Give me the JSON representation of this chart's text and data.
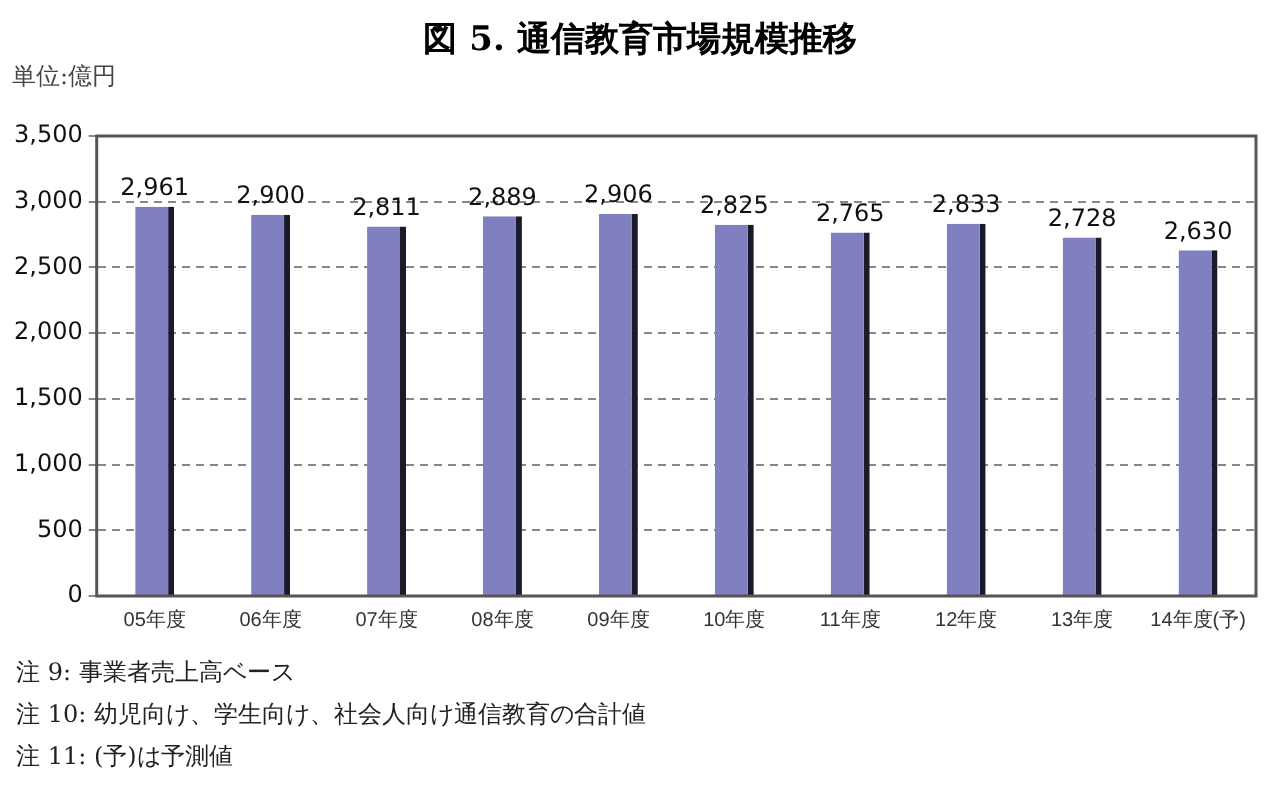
{
  "chart_data": {
    "type": "bar",
    "title": "図 5. 通信教育市場規模推移",
    "ylabel": "単位:億円",
    "categories": [
      "05年度",
      "06年度",
      "07年度",
      "08年度",
      "09年度",
      "10年度",
      "11年度",
      "12年度",
      "13年度",
      "14年度(予)"
    ],
    "values": [
      2961,
      2900,
      2811,
      2889,
      2906,
      2825,
      2765,
      2833,
      2728,
      2630
    ],
    "color": "#8080c0",
    "value_labels": [
      "2,961",
      "2,900",
      "2,811",
      "2,889",
      "2,906",
      "2,825",
      "2,765",
      "2,833",
      "2,728",
      "2,630"
    ],
    "ylim": [
      0,
      3500
    ],
    "yticks": [
      0,
      500,
      {
        "value": 1000,
        "label": "1,000"
      },
      {
        "value": 1500,
        "label": "1,500"
      },
      {
        "value": 2000,
        "label": "2,000"
      },
      {
        "value": 2500,
        "label": "2,500"
      },
      {
        "value": 3000,
        "label": "3,000"
      },
      {
        "value": 3500,
        "label": "3,500"
      }
    ],
    "grid": "y",
    "annotations": [
      "注 9: 事業者売上高ベース",
      "注 10: 幼児向け、学生向け、社会人向け通信教育の合計値",
      "注 11: (予)は予測値"
    ]
  }
}
